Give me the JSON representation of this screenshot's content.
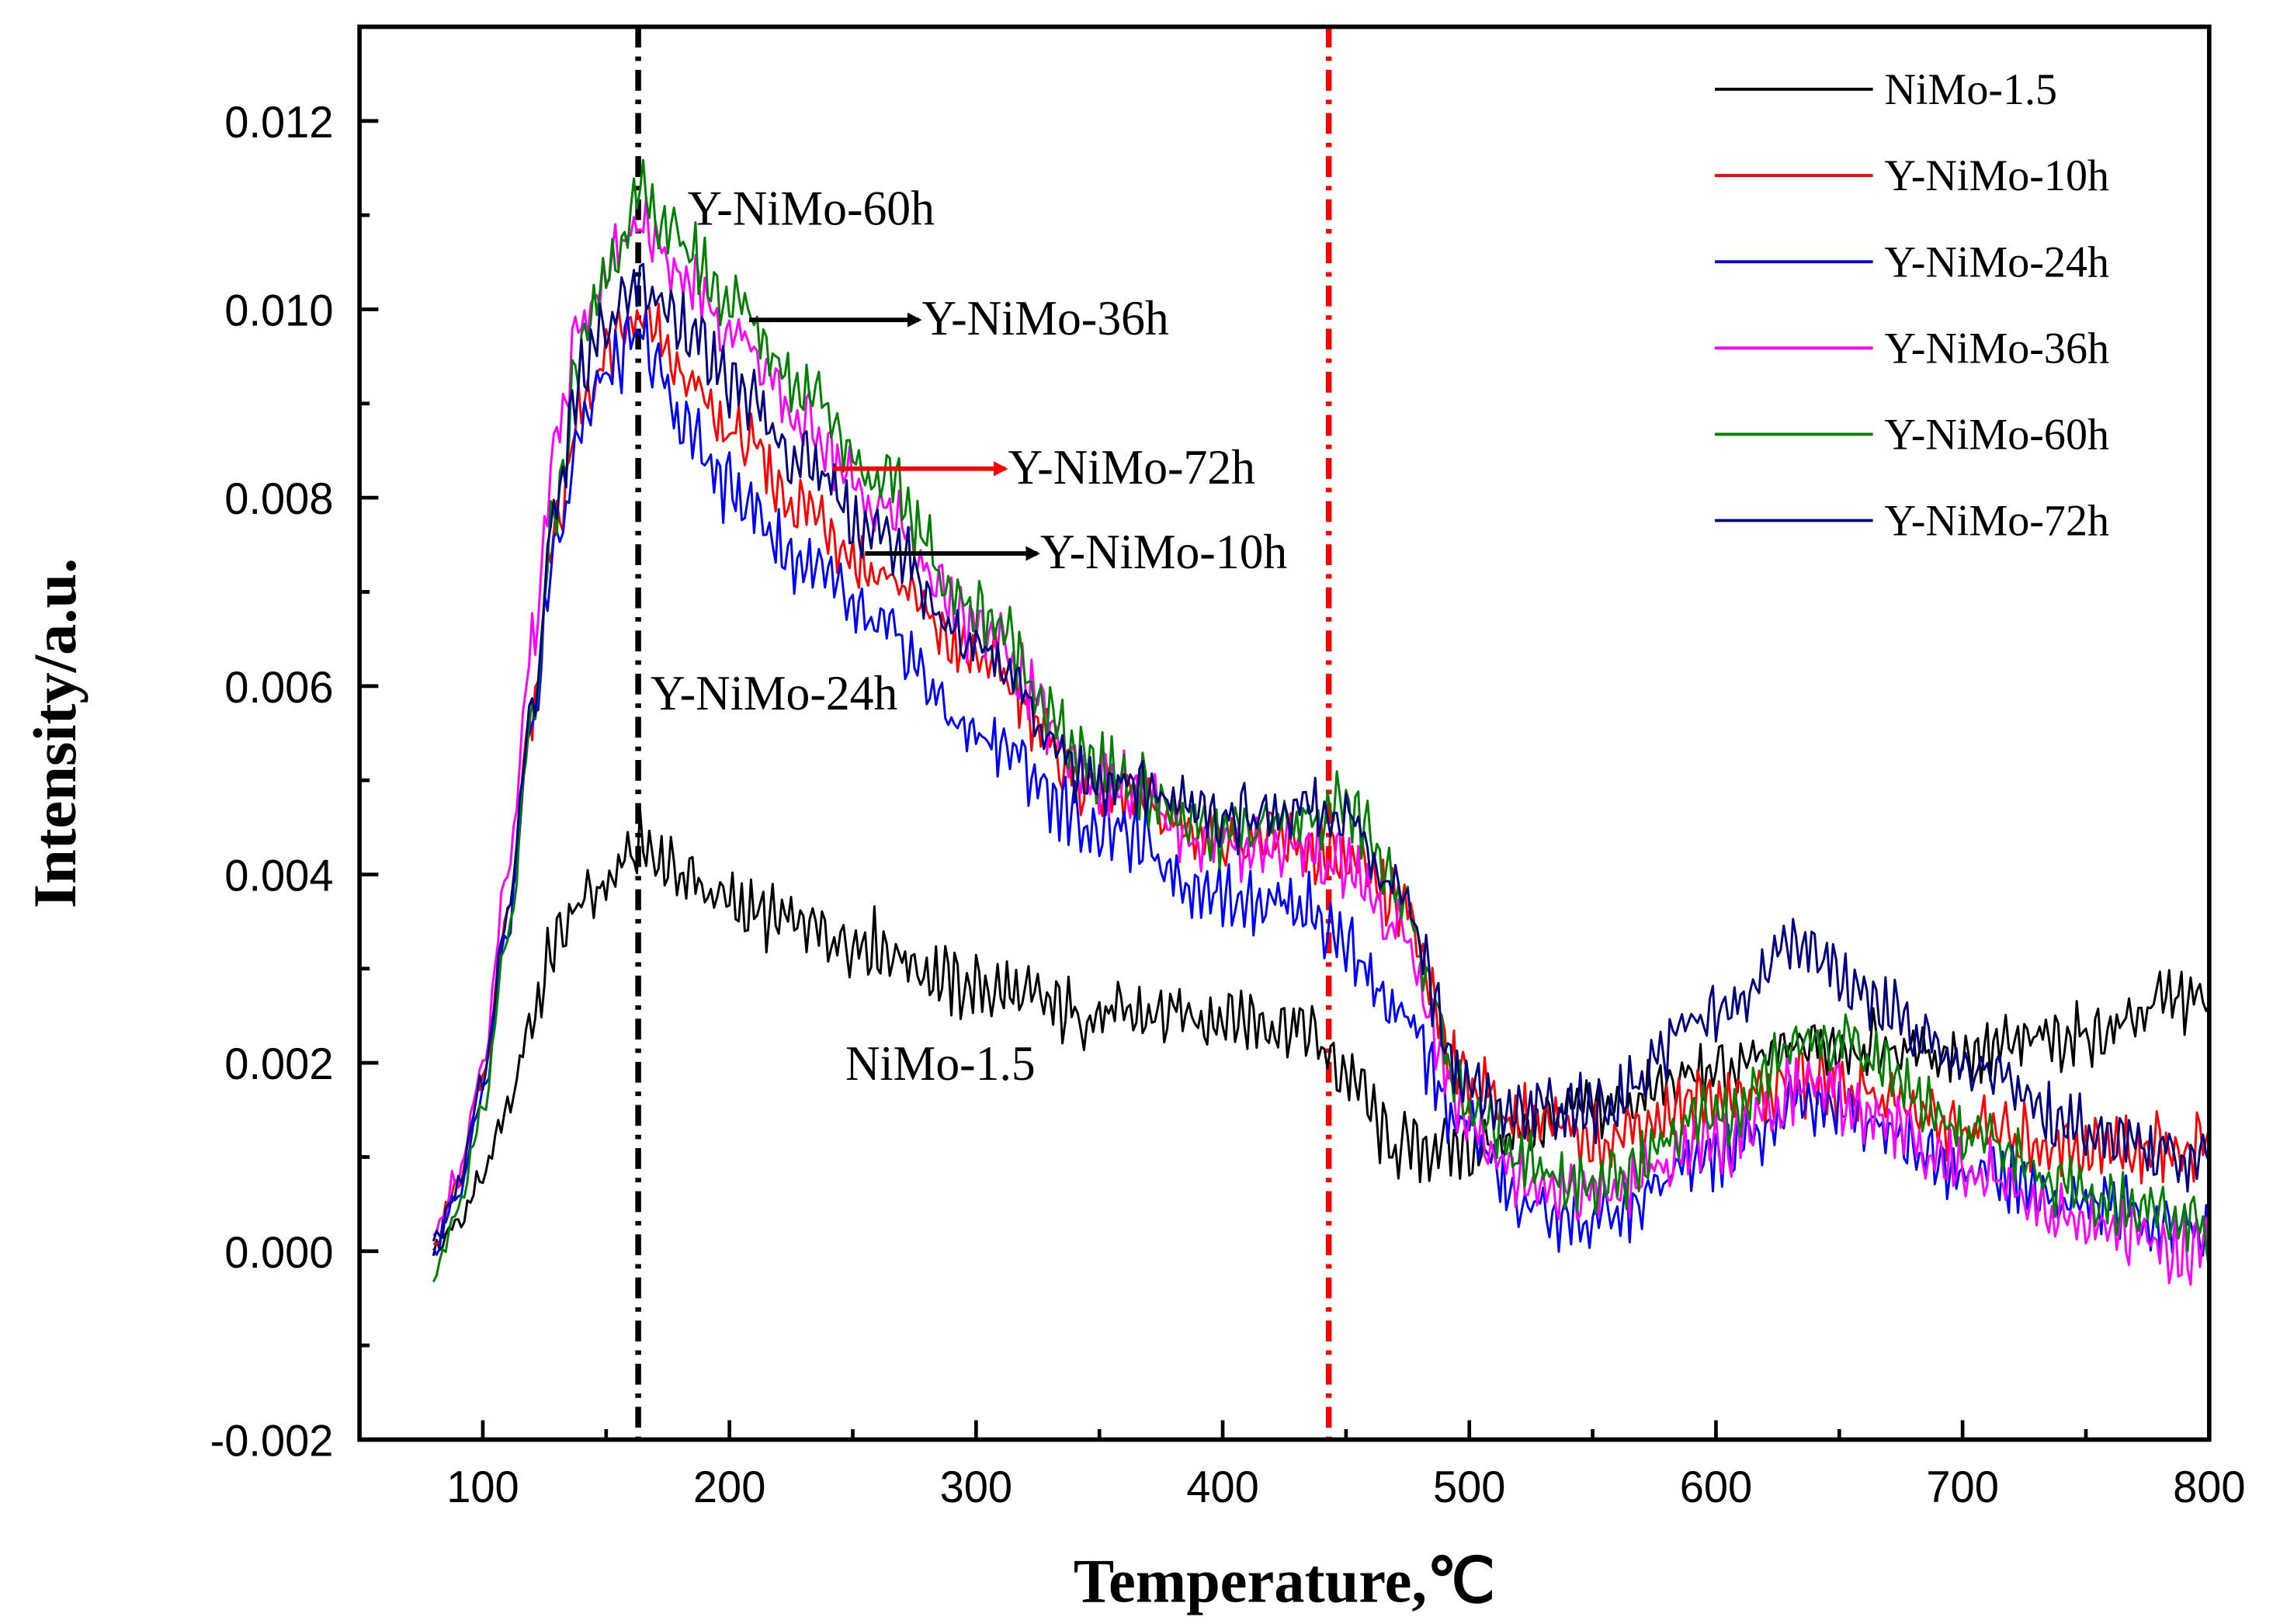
{
  "chart_data": {
    "type": "line",
    "title": "",
    "xlabel": "Temperature,℃",
    "ylabel": "Intensity/a.u.",
    "xlim": [
      50,
      800
    ],
    "ylim": [
      -0.002,
      0.013
    ],
    "x_ticks": [
      100,
      200,
      300,
      400,
      500,
      600,
      700,
      800
    ],
    "x_tick_labels": [
      "100",
      "200",
      "300",
      "400",
      "500",
      "600",
      "700",
      "800"
    ],
    "y_ticks": [
      -0.002,
      0.0,
      0.002,
      0.004,
      0.006,
      0.008,
      0.01,
      0.012
    ],
    "y_tick_labels": [
      "-0.002",
      "0.000",
      "0.002",
      "0.004",
      "0.006",
      "0.008",
      "0.010",
      "0.012"
    ],
    "grid": false,
    "legend_position": "top-right",
    "reference_lines": [
      {
        "x": 163,
        "color": "#000000",
        "style": "dash-dot"
      },
      {
        "x": 443,
        "color": "#ff0000",
        "style": "dash-dot"
      }
    ],
    "series": [
      {
        "name": "NiMo-1.5",
        "color": "#000000",
        "x": [
          80,
          90,
          100,
          110,
          120,
          130,
          140,
          150,
          160,
          165,
          170,
          180,
          200,
          220,
          250,
          300,
          350,
          400,
          430,
          450,
          470,
          500,
          550,
          600,
          640,
          700,
          750,
          790,
          800
        ],
        "y": [
          0.0,
          0.0003,
          0.0008,
          0.0015,
          0.0025,
          0.0033,
          0.0037,
          0.0039,
          0.0042,
          0.0043,
          0.0042,
          0.004,
          0.0037,
          0.0035,
          0.0033,
          0.0028,
          0.0025,
          0.0025,
          0.0024,
          0.0019,
          0.0011,
          0.0011,
          0.0015,
          0.0019,
          0.0022,
          0.0021,
          0.0023,
          0.0027,
          0.0026
        ]
      },
      {
        "name": "Y-NiMo-10h",
        "color": "#ff0000",
        "x": [
          80,
          90,
          100,
          110,
          120,
          130,
          140,
          150,
          160,
          165,
          170,
          180,
          200,
          230,
          260,
          300,
          350,
          400,
          430,
          450,
          470,
          500,
          520,
          550,
          600,
          640,
          660,
          700,
          750,
          790,
          800
        ],
        "y": [
          0.0001,
          0.0007,
          0.0018,
          0.0036,
          0.0058,
          0.0078,
          0.0089,
          0.0095,
          0.0098,
          0.0099,
          0.0097,
          0.0093,
          0.0087,
          0.0079,
          0.0072,
          0.0063,
          0.0049,
          0.0044,
          0.0043,
          0.0041,
          0.0037,
          0.0018,
          0.0014,
          0.0012,
          0.0016,
          0.0018,
          0.0017,
          0.0013,
          0.0011,
          0.0011,
          0.0012
        ]
      },
      {
        "name": "Y-NiMo-24h",
        "color": "#0000ff",
        "x": [
          80,
          90,
          100,
          110,
          120,
          130,
          140,
          150,
          160,
          165,
          170,
          180,
          200,
          230,
          260,
          300,
          350,
          400,
          430,
          450,
          470,
          500,
          520,
          550,
          600,
          640,
          660,
          700,
          750,
          790,
          800
        ],
        "y": [
          0.0,
          0.0006,
          0.0017,
          0.0034,
          0.0056,
          0.0076,
          0.0088,
          0.0093,
          0.0096,
          0.0097,
          0.0094,
          0.0088,
          0.0081,
          0.0073,
          0.0066,
          0.0055,
          0.0045,
          0.0038,
          0.0037,
          0.0033,
          0.0025,
          0.0013,
          0.0005,
          0.0003,
          0.001,
          0.0016,
          0.0014,
          0.0009,
          0.0005,
          0.0003,
          0.0002
        ]
      },
      {
        "name": "Y-NiMo-36h",
        "color": "#ff00ff",
        "x": [
          80,
          90,
          100,
          110,
          120,
          130,
          140,
          150,
          160,
          165,
          170,
          180,
          200,
          230,
          260,
          300,
          350,
          400,
          430,
          450,
          470,
          500,
          520,
          550,
          600,
          640,
          660,
          700,
          750,
          790,
          800
        ],
        "y": [
          0.0002,
          0.0008,
          0.002,
          0.004,
          0.0064,
          0.0087,
          0.0099,
          0.0104,
          0.0108,
          0.0109,
          0.0107,
          0.0104,
          0.0098,
          0.0088,
          0.0079,
          0.0066,
          0.005,
          0.0043,
          0.0043,
          0.0041,
          0.0034,
          0.0014,
          0.0008,
          0.0006,
          0.0011,
          0.0018,
          0.0015,
          0.0009,
          0.0003,
          0.0,
          0.0001
        ]
      },
      {
        "name": "Y-NiMo-60h",
        "color": "#008000",
        "x": [
          80,
          90,
          100,
          110,
          120,
          130,
          140,
          150,
          160,
          165,
          170,
          180,
          200,
          230,
          260,
          300,
          350,
          400,
          430,
          450,
          470,
          500,
          520,
          550,
          600,
          640,
          660,
          700,
          750,
          790,
          800
        ],
        "y": [
          -0.0002,
          0.0004,
          0.0015,
          0.0033,
          0.0056,
          0.008,
          0.0096,
          0.0104,
          0.011,
          0.0112,
          0.011,
          0.0107,
          0.0101,
          0.0092,
          0.0082,
          0.0068,
          0.0051,
          0.0044,
          0.0046,
          0.0047,
          0.0039,
          0.0016,
          0.001,
          0.0007,
          0.0014,
          0.0023,
          0.0021,
          0.0013,
          0.0006,
          0.0003,
          0.0002
        ]
      },
      {
        "name": "Y-NiMo-72h",
        "color": "#000080",
        "x": [
          80,
          90,
          100,
          110,
          120,
          130,
          140,
          150,
          160,
          165,
          170,
          180,
          200,
          230,
          260,
          300,
          350,
          400,
          430,
          450,
          470,
          500,
          520,
          550,
          600,
          635,
          660,
          700,
          750,
          790,
          800
        ],
        "y": [
          0.0001,
          0.0007,
          0.0018,
          0.0036,
          0.0058,
          0.008,
          0.0093,
          0.0098,
          0.0102,
          0.0103,
          0.0101,
          0.0099,
          0.0092,
          0.0084,
          0.0076,
          0.0064,
          0.005,
          0.0046,
          0.0047,
          0.0046,
          0.0038,
          0.0018,
          0.0015,
          0.0015,
          0.0025,
          0.0033,
          0.0027,
          0.002,
          0.0013,
          0.001,
          0.0011
        ]
      }
    ],
    "annotations": [
      {
        "text": "Y-NiMo-60h",
        "x_data": 183,
        "y_data": 0.0109,
        "arrow": false
      },
      {
        "text": "Y-NiMo-36h",
        "x_data": 278,
        "y_data": 0.00973,
        "arrow": true,
        "arrow_color": "#000000",
        "arrow_from_x": 208
      },
      {
        "text": "Y-NiMo-72h",
        "x_data": 313,
        "y_data": 0.00815,
        "arrow": true,
        "arrow_color": "#ff0000",
        "arrow_from_x": 242
      },
      {
        "text": "Y-NiMo-10h",
        "x_data": 326,
        "y_data": 0.00725,
        "arrow": true,
        "arrow_color": "#000000",
        "arrow_from_x": 255
      },
      {
        "text": "Y-NiMo-24h",
        "x_data": 168,
        "y_data": 0.00575,
        "arrow": false
      },
      {
        "text": "NiMo-1.5",
        "x_data": 247,
        "y_data": 0.00182,
        "arrow": false
      }
    ]
  }
}
